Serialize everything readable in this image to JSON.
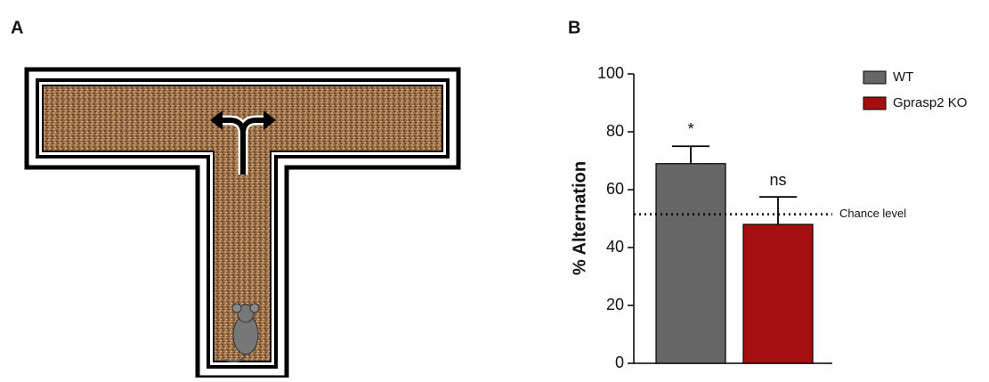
{
  "panel_labels": [
    "A",
    "B"
  ],
  "chart_data": {
    "type": "bar",
    "y_label": "% Alternation",
    "categories": [
      null
    ],
    "series": [
      {
        "name": "WT",
        "color": "#666666",
        "values": [
          69
        ],
        "errors": [
          6
        ],
        "annotation": "*"
      },
      {
        "name": "Gprasp2 KO",
        "color": "#a50f0f",
        "values": [
          48
        ],
        "errors": [
          9.5
        ],
        "annotation": "ns"
      }
    ],
    "reference_line": {
      "value": 51.5,
      "label": "Chance level"
    },
    "ylim": [
      0,
      100
    ],
    "yticks": [
      0,
      20,
      40,
      60,
      80,
      100
    ],
    "legend": "top-right"
  }
}
